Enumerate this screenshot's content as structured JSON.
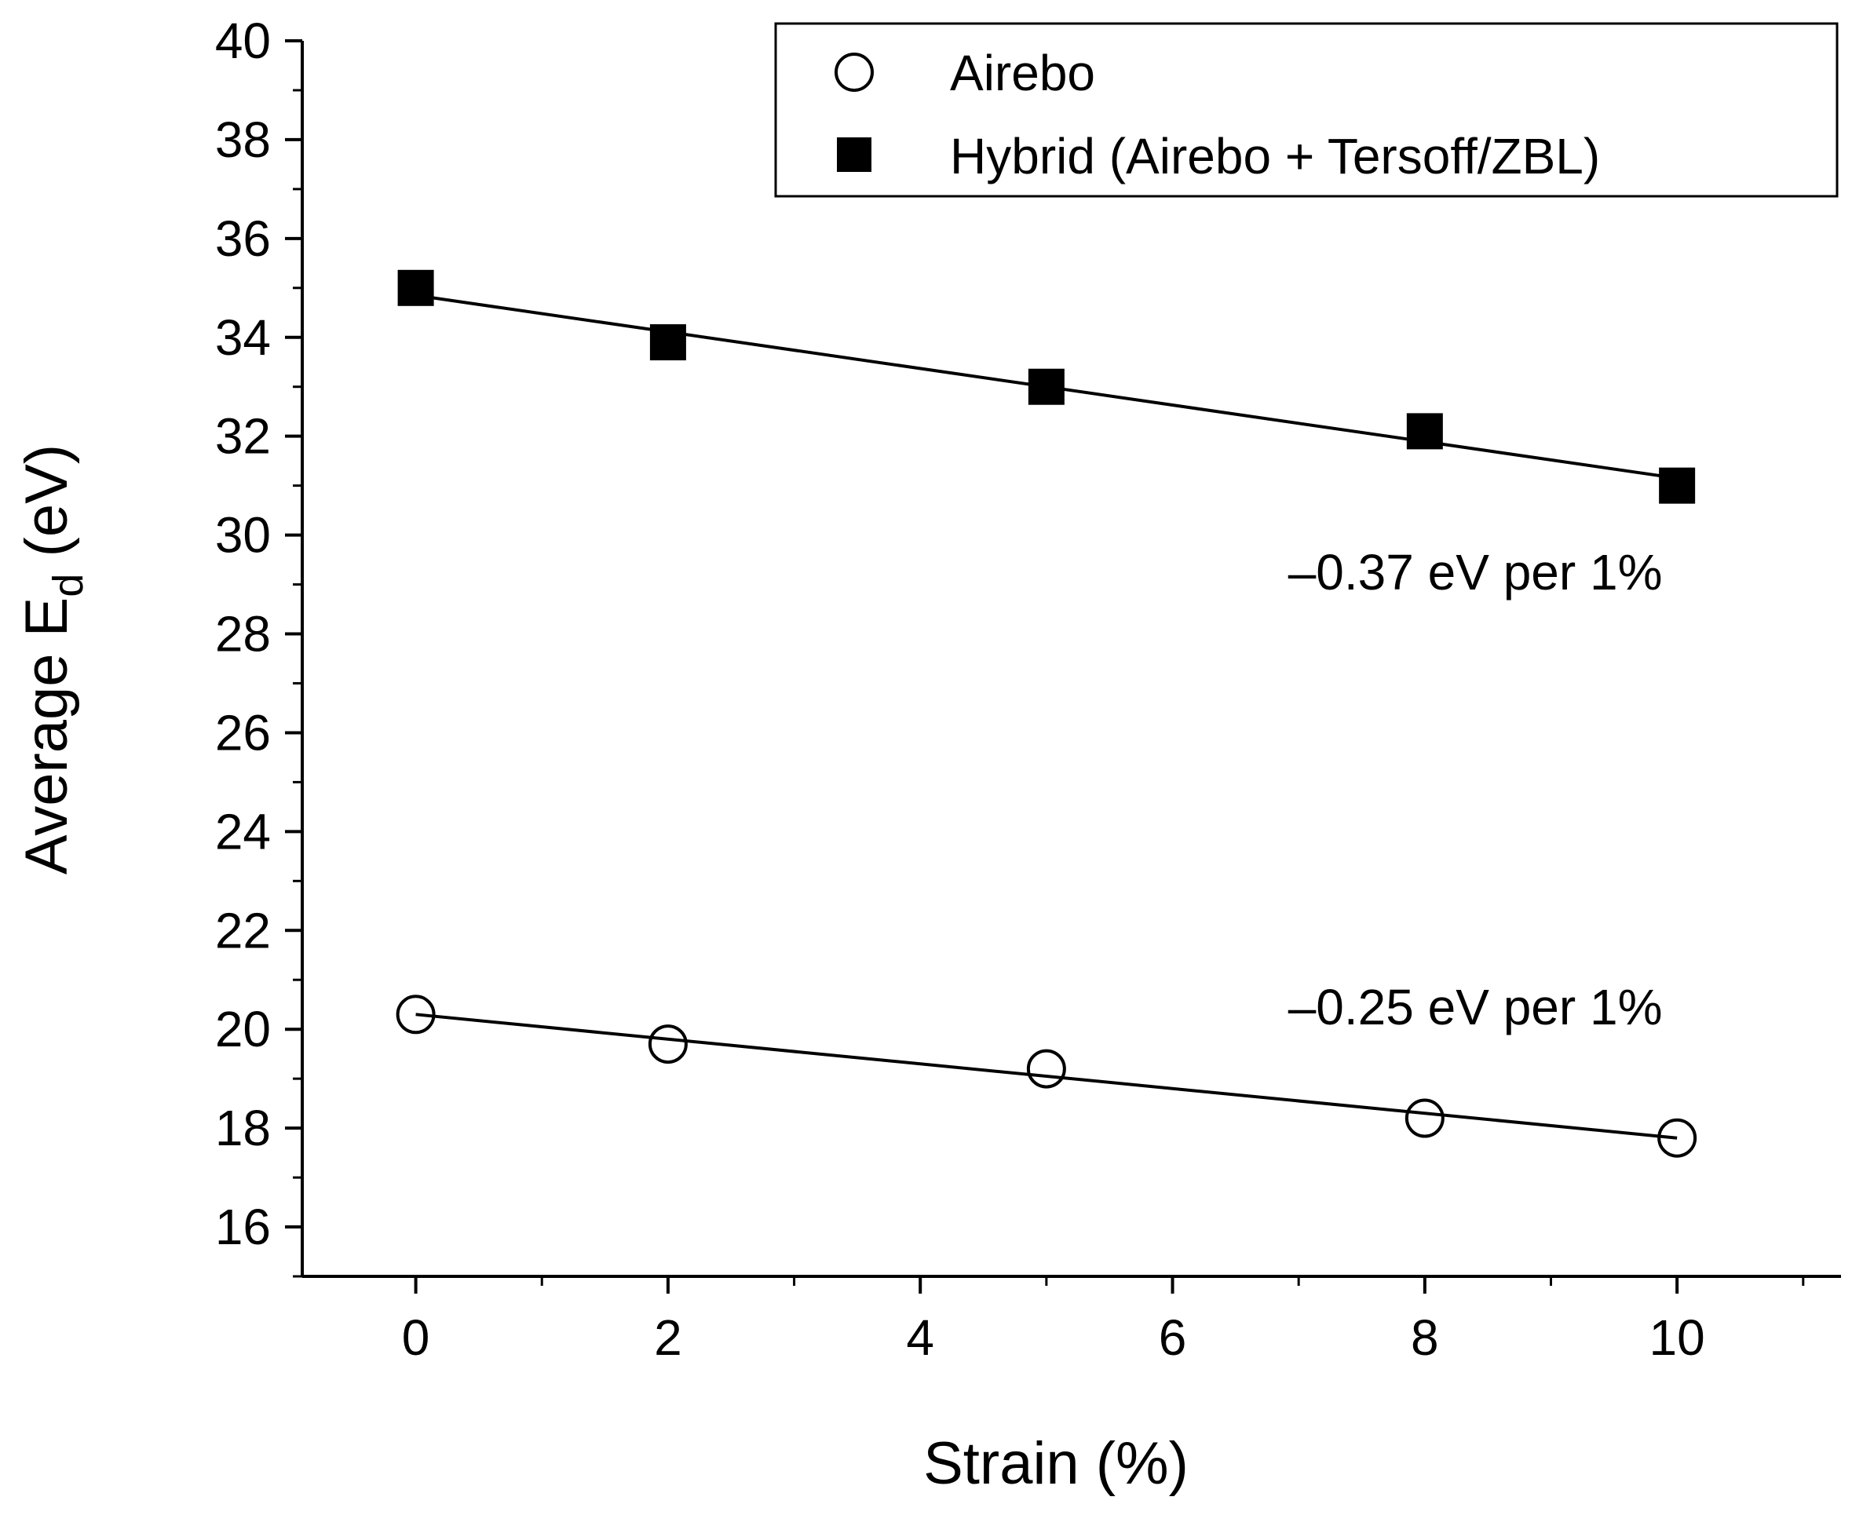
{
  "chart_data": {
    "type": "scatter",
    "title": "",
    "xlabel": "Strain (%)",
    "ylabel": "Average E",
    "ylabel_subscript": "d",
    "ylabel_suffix": " (eV)",
    "xlim": [
      -0.9,
      11.3
    ],
    "ylim": [
      15,
      40
    ],
    "xticks": [
      0,
      2,
      4,
      6,
      8,
      10
    ],
    "xtick_labels": [
      "0",
      "2",
      "4",
      "6",
      "8",
      "10"
    ],
    "yticks": [
      16,
      18,
      20,
      22,
      24,
      26,
      28,
      30,
      32,
      34,
      36,
      38,
      40
    ],
    "ytick_labels": [
      "16",
      "18",
      "20",
      "22",
      "24",
      "26",
      "28",
      "30",
      "32",
      "34",
      "36",
      "38",
      "40"
    ],
    "grid": false,
    "legend_position": "top-right",
    "series": [
      {
        "name": "Airebo",
        "marker": "open-circle",
        "x": [
          0,
          2,
          5,
          8,
          10
        ],
        "y": [
          20.3,
          19.7,
          19.2,
          18.2,
          17.8
        ],
        "fit": {
          "x": [
            0,
            10
          ],
          "y": [
            20.3,
            17.8
          ]
        }
      },
      {
        "name": "Hybrid (Airebo + Tersoff/ZBL)",
        "marker": "filled-square",
        "x": [
          0,
          2,
          5,
          8,
          10
        ],
        "y": [
          35.0,
          33.9,
          33.0,
          32.1,
          31.0
        ],
        "fit": {
          "x": [
            0,
            10
          ],
          "y": [
            34.85,
            31.15
          ]
        }
      }
    ],
    "annotations": [
      {
        "text": "–0.37 eV per 1%",
        "x": 8.4,
        "y": 28.9
      },
      {
        "text": "–0.25 eV per 1%",
        "x": 8.4,
        "y": 20.1
      }
    ]
  },
  "colors": {
    "ink": "#000000",
    "background": "#ffffff"
  }
}
